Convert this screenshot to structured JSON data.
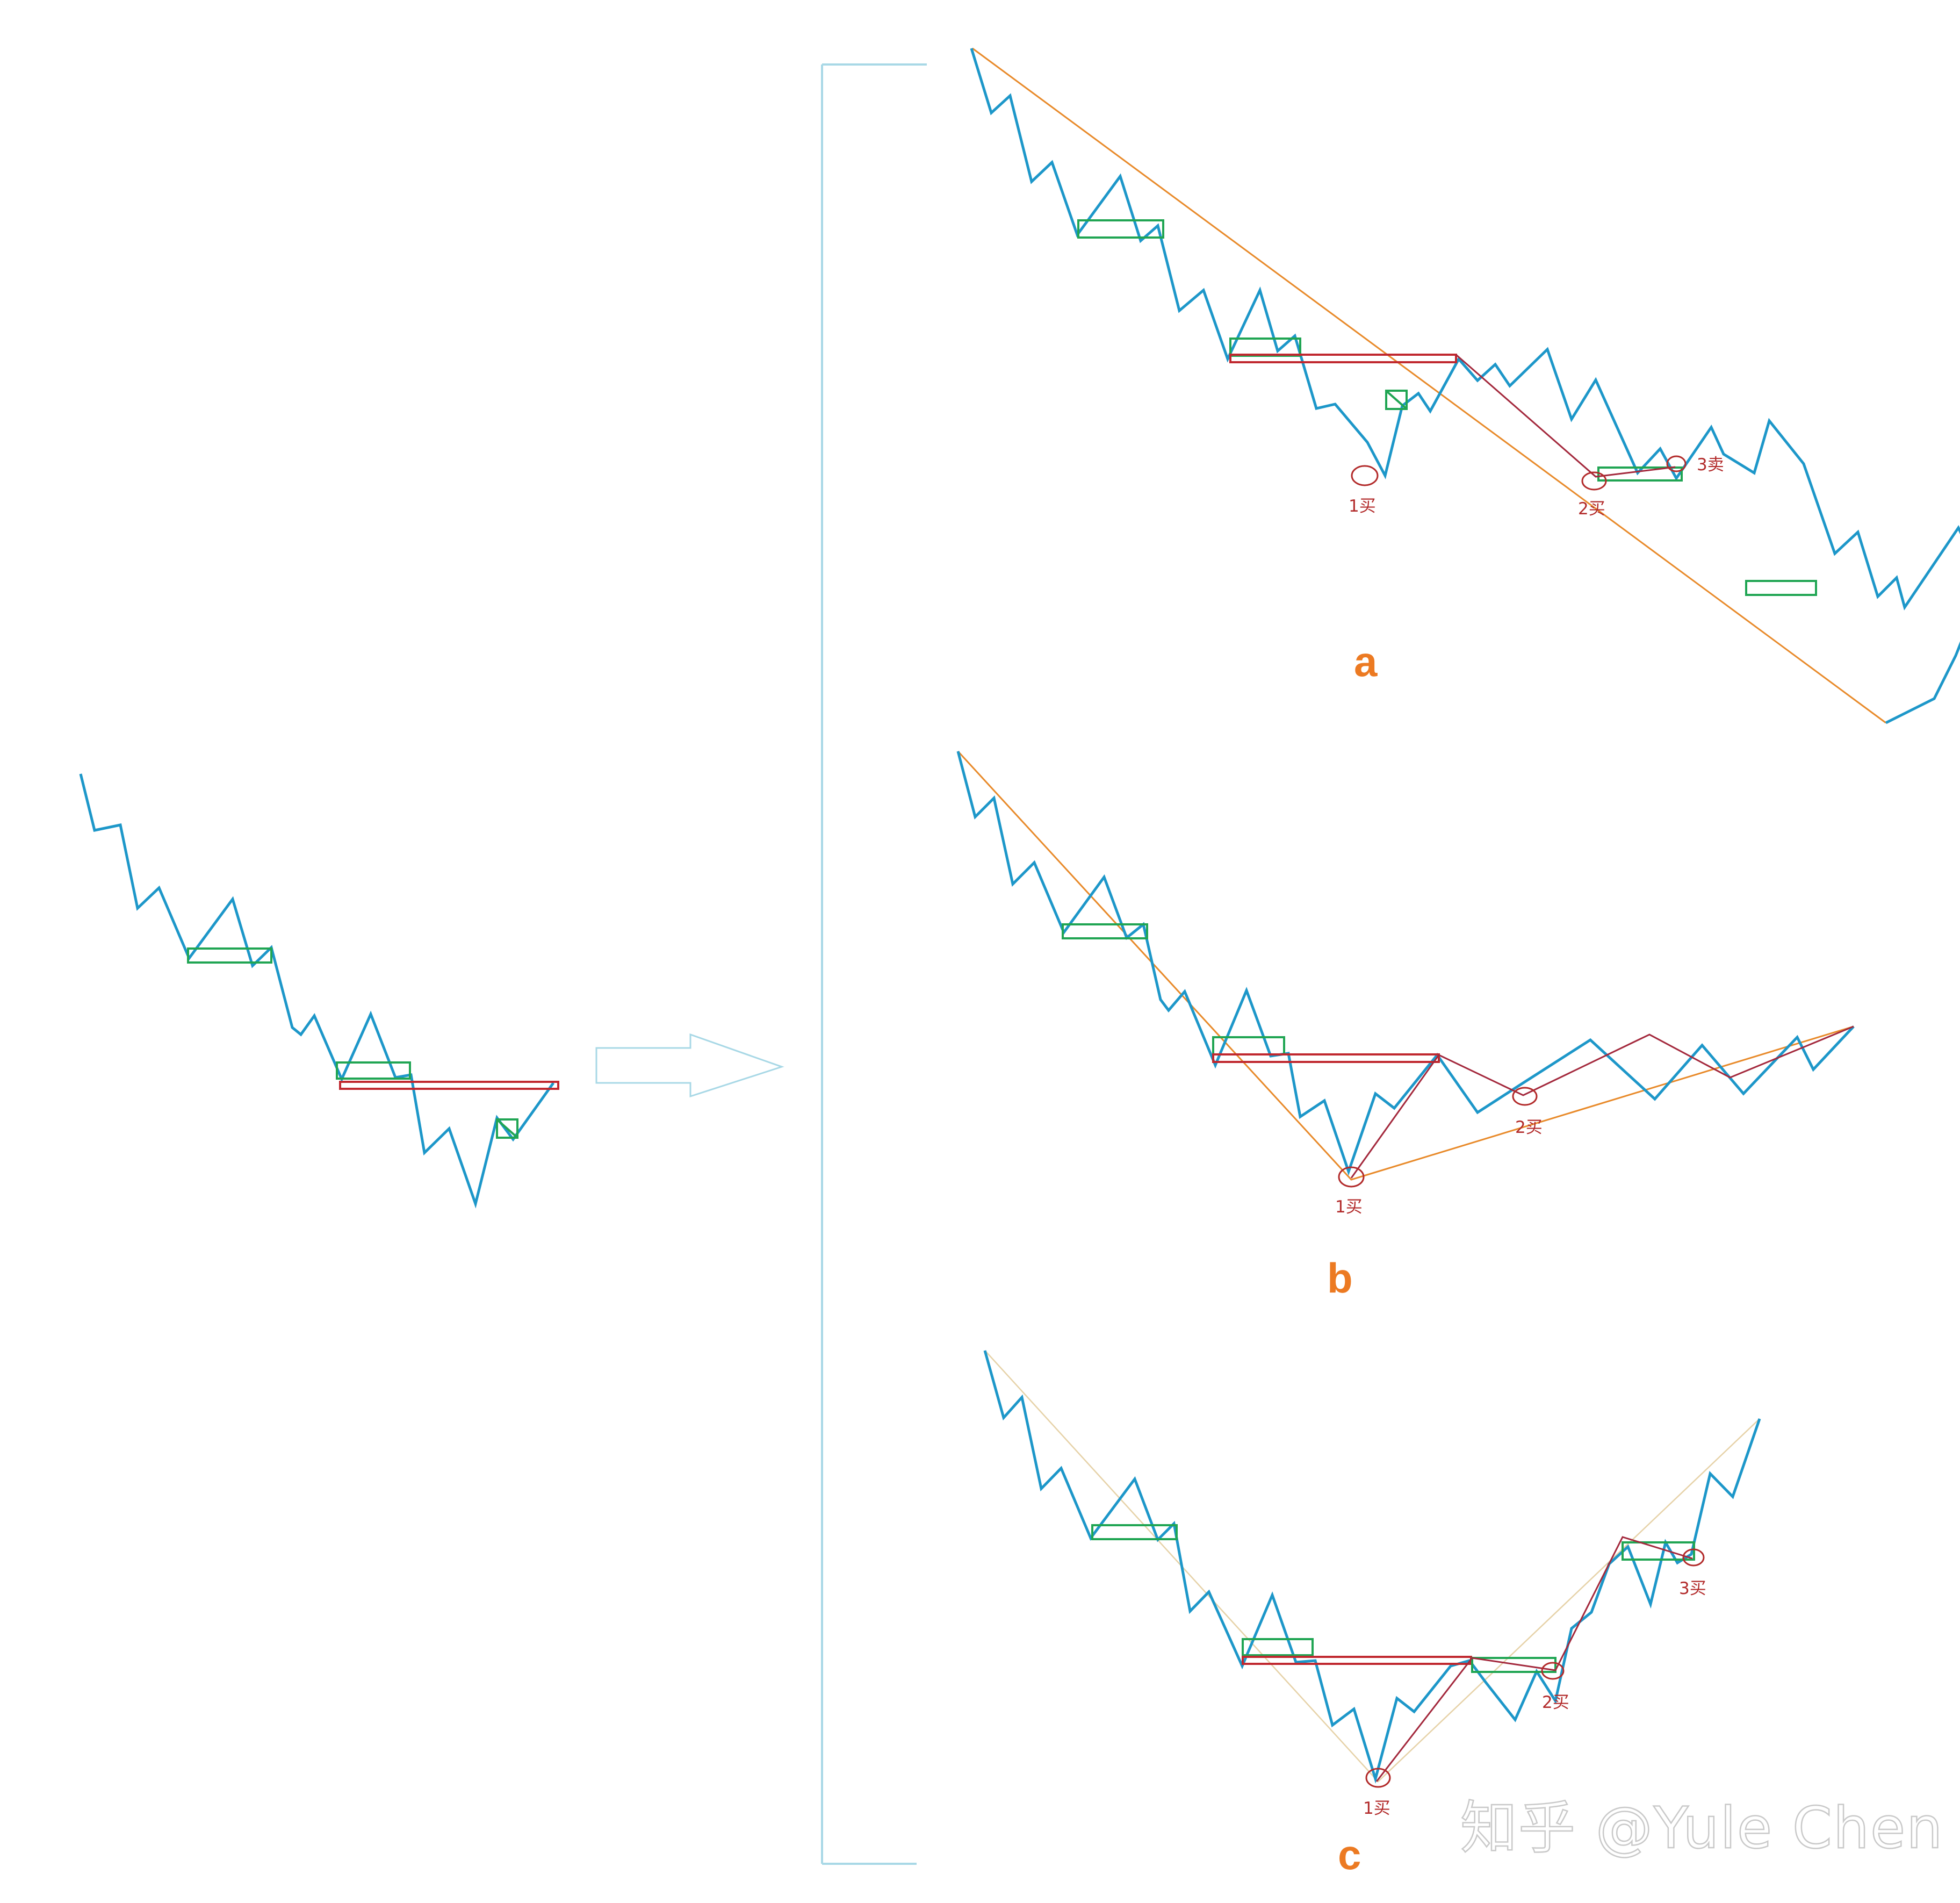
{
  "colors": {
    "zigzag": "#1d97c9",
    "pivot_box": "#20a553",
    "central_zone": "#c0282f",
    "trend_line": "#e88a2a",
    "trend_line_light": "#e6d2a8",
    "connector": "#a3283c",
    "marker": "#b22a2a",
    "bracket": "#a8d8e6",
    "arrow": "#a8d8e6",
    "panel_title": "#ec7a22",
    "watermark": "#c9c9c9"
  },
  "panels": {
    "a": {
      "title": "a",
      "labels": {
        "buy1": "1买",
        "buy2": "2买",
        "sell3": "3卖"
      }
    },
    "b": {
      "title": "b",
      "labels": {
        "buy1": "1买",
        "buy2": "2买"
      }
    },
    "c": {
      "title": "c",
      "labels": {
        "buy1": "1买",
        "buy2": "2买",
        "buy3": "3买"
      }
    }
  },
  "watermark": "知乎 @Yule Chen",
  "icons": {
    "arrow": "right-arrow-icon"
  }
}
